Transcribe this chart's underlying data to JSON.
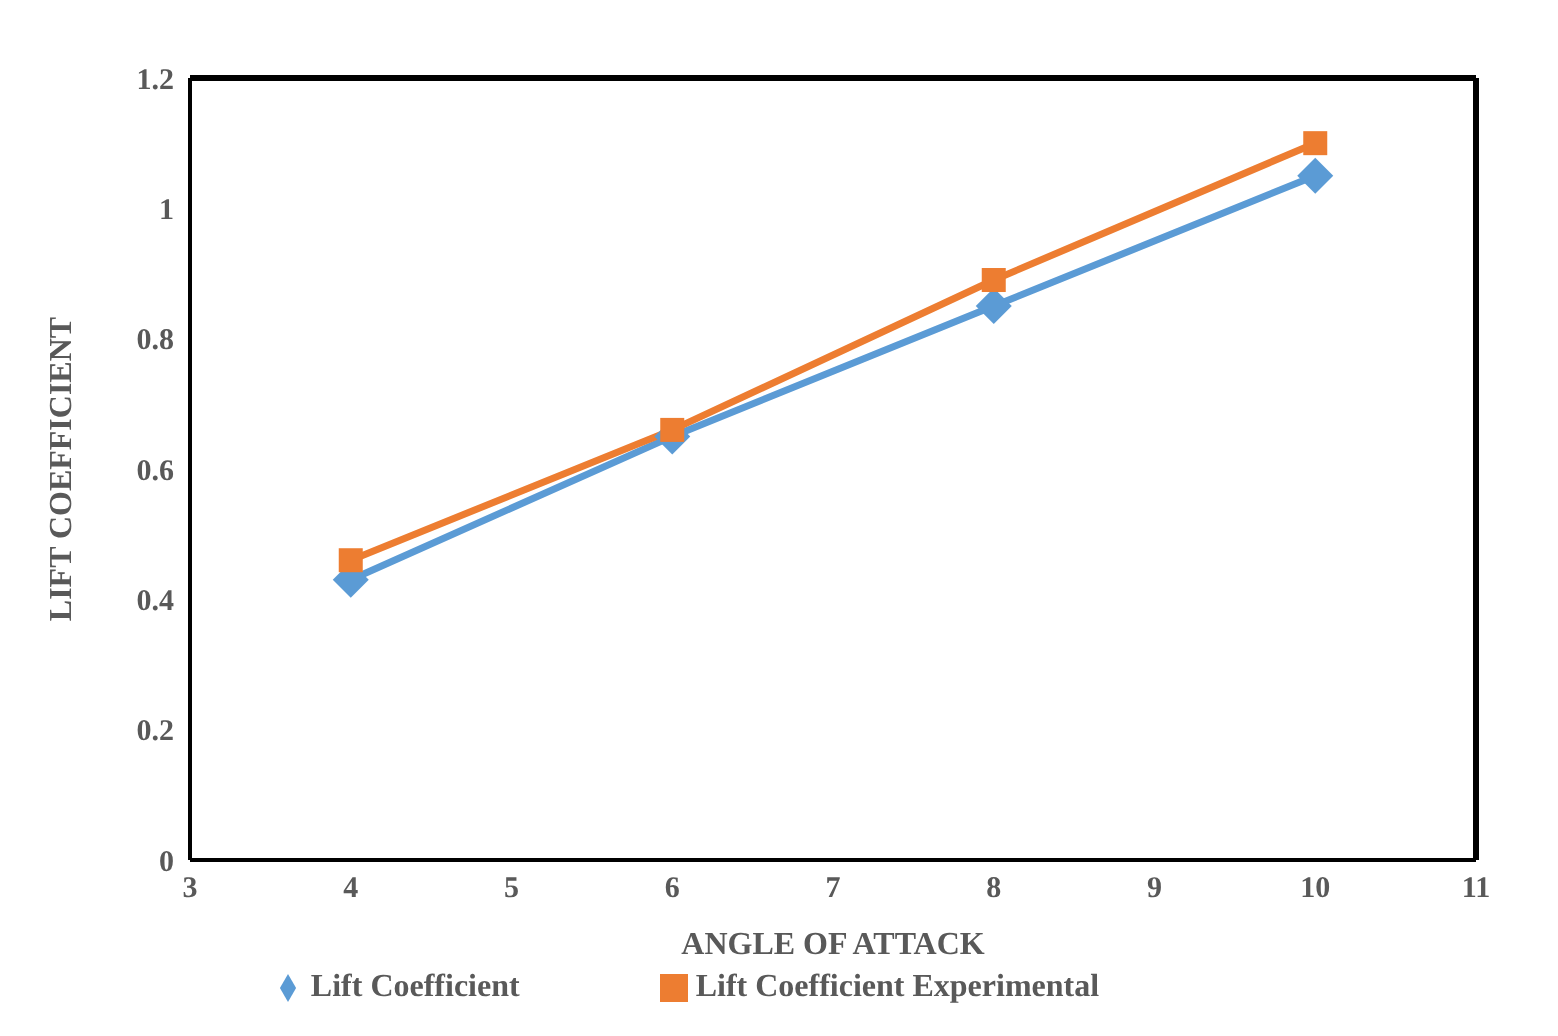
{
  "chart_data": {
    "type": "line",
    "xlabel": "ANGLE OF ATTACK",
    "ylabel": "LIFT COEFFICIENT",
    "x": [
      4,
      6,
      8,
      10
    ],
    "series": [
      {
        "name": "Lift Coefficient",
        "color": "#5b9bd5",
        "marker": "diamond",
        "values": [
          0.43,
          0.65,
          0.85,
          1.05
        ]
      },
      {
        "name": "Lift Coefficient Experimental",
        "color": "#ed7d31",
        "marker": "square",
        "values": [
          0.46,
          0.66,
          0.89,
          1.1
        ]
      }
    ],
    "xlim": [
      3,
      11
    ],
    "xticks": [
      3,
      4,
      5,
      6,
      7,
      8,
      9,
      10,
      11
    ],
    "ylim": [
      0,
      1.2
    ],
    "yticks": [
      0,
      0.2,
      0.4,
      0.6,
      0.8,
      1,
      1.2
    ],
    "grid": false,
    "legend": "bottom",
    "line_style": "solid"
  }
}
